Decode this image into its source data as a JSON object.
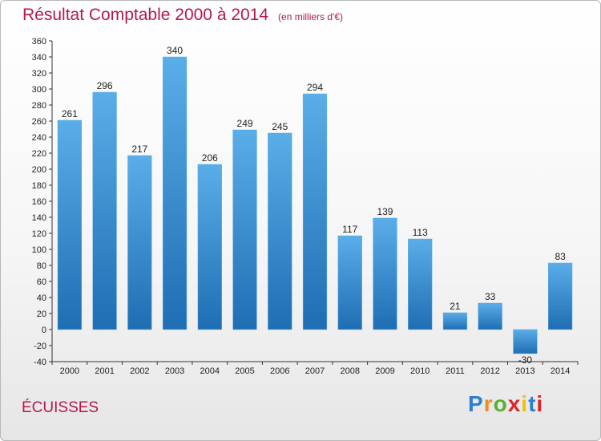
{
  "chart_data": {
    "type": "bar",
    "title": "Résultat Comptable 2000 à 2014",
    "subtitle": "(en milliers d'€)",
    "xlabel": "",
    "ylabel": "",
    "categories": [
      "2000",
      "2001",
      "2002",
      "2003",
      "2004",
      "2005",
      "2006",
      "2007",
      "2008",
      "2009",
      "2010",
      "2011",
      "2012",
      "2013",
      "2014"
    ],
    "values": [
      261,
      296,
      217,
      340,
      206,
      249,
      245,
      294,
      117,
      139,
      113,
      21,
      33,
      -30,
      83
    ],
    "data_labels": [
      "261",
      "296",
      "217",
      "340",
      "206",
      "249",
      "245",
      "294",
      "117",
      "139",
      "113",
      "21",
      "33",
      "-30",
      "83"
    ],
    "ylim": [
      -40,
      360
    ],
    "ytick_step": 20,
    "grid": false,
    "legend": "none",
    "bar_color": "#3d8fd6",
    "bar_color_light": "#5aaee8",
    "bar_color_dark": "#1f6db3"
  },
  "commune": "ÉCUISSES",
  "brand": {
    "letters": [
      "P",
      "r",
      "o",
      "x",
      "i",
      "t",
      "i"
    ],
    "colors": [
      "#2a7fd4",
      "#f08a1c",
      "#58b231",
      "#d9262c",
      "#f0c400",
      "#2a7fd4",
      "#d9262c"
    ]
  }
}
